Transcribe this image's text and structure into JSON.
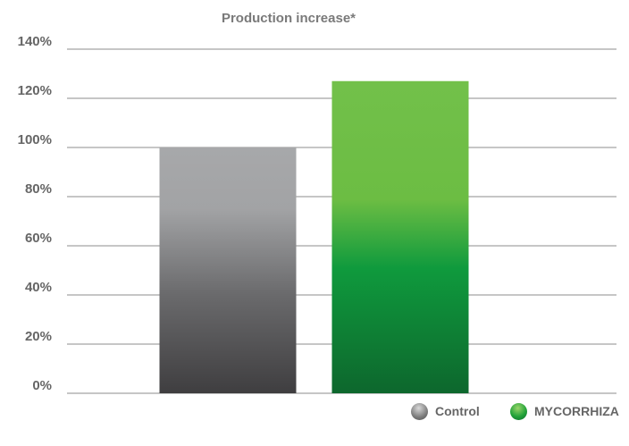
{
  "chart_data": {
    "type": "bar",
    "title": "Production increase*",
    "categories": [
      "Control",
      "MYCORRHIZA"
    ],
    "values": [
      100,
      127
    ],
    "ylim": [
      0,
      140
    ],
    "yticks": [
      0,
      20,
      40,
      60,
      80,
      100,
      120,
      140
    ],
    "ytick_labels": [
      "0%",
      "20%",
      "40%",
      "60%",
      "80%",
      "100%",
      "120%",
      "140%"
    ],
    "grid": true,
    "legend": {
      "placement": "bottom-right",
      "items": [
        {
          "label": "Control",
          "color": "#6f6f6f"
        },
        {
          "label": "MYCORRHIZA",
          "color": "#1f9a3a"
        }
      ]
    },
    "colors": {
      "control_top": "#a7a8aa",
      "control_bottom": "#3f3e40",
      "myco_top": "#6fbf45",
      "myco_bottom": "#0d6a2d",
      "grid": "#8c8c8c",
      "tick_label": "#666666"
    }
  }
}
